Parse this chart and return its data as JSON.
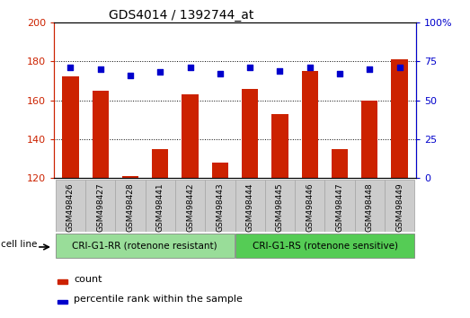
{
  "title": "GDS4014 / 1392744_at",
  "categories": [
    "GSM498426",
    "GSM498427",
    "GSM498428",
    "GSM498441",
    "GSM498442",
    "GSM498443",
    "GSM498444",
    "GSM498445",
    "GSM498446",
    "GSM498447",
    "GSM498448",
    "GSM498449"
  ],
  "count_values": [
    172,
    165,
    121,
    135,
    163,
    128,
    166,
    153,
    175,
    135,
    160,
    181
  ],
  "percentile_values": [
    71,
    70,
    66,
    68,
    71,
    67,
    71,
    69,
    71,
    67,
    70,
    71
  ],
  "bar_color": "#cc2200",
  "dot_color": "#0000cc",
  "ylim_left": [
    120,
    200
  ],
  "ylim_right": [
    0,
    100
  ],
  "yticks_left": [
    120,
    140,
    160,
    180,
    200
  ],
  "yticks_right": [
    0,
    25,
    50,
    75,
    100
  ],
  "background_color": "#ffffff",
  "plot_bg": "#ffffff",
  "group1_label": "CRI-G1-RR (rotenone resistant)",
  "group2_label": "CRI-G1-RS (rotenone sensitive)",
  "group1_color": "#99dd99",
  "group2_color": "#55cc55",
  "cell_line_label": "cell line",
  "legend1_label": "count",
  "legend2_label": "percentile rank within the sample",
  "tick_color_left": "#cc2200",
  "tick_color_right": "#0000cc",
  "title_fontsize": 10,
  "axis_fontsize": 8,
  "bar_width": 0.55,
  "xtick_box_color": "#cccccc",
  "xtick_box_edge": "#aaaaaa"
}
